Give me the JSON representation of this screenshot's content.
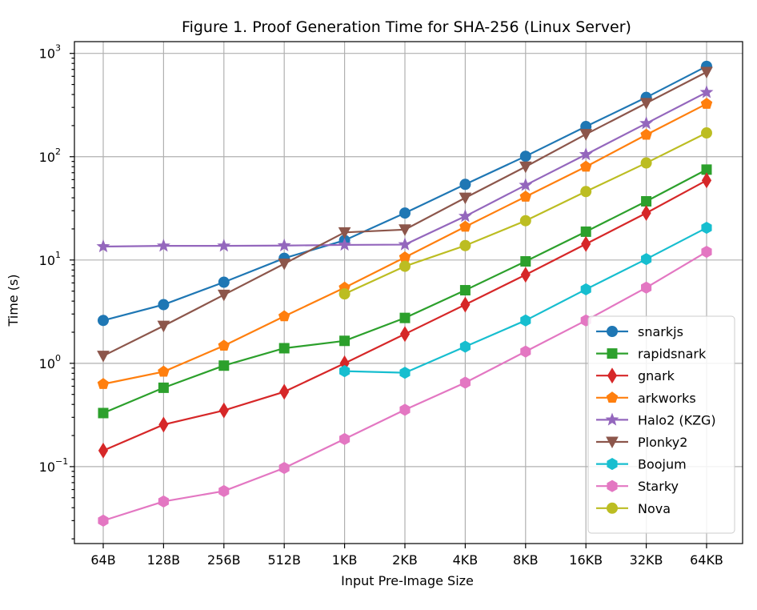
{
  "chart_data": {
    "type": "line",
    "title": "Figure 1. Proof Generation Time for SHA-256 (Linux Server)",
    "xlabel": "Input Pre-Image Size",
    "ylabel": "Time (s)",
    "y_scale": "log",
    "ylim": [
      0.018,
      1300
    ],
    "y_ticks": [
      {
        "value": 0.1,
        "base": "10",
        "exp": "−1"
      },
      {
        "value": 1,
        "base": "10",
        "exp": "0"
      },
      {
        "value": 10,
        "base": "10",
        "exp": "1"
      },
      {
        "value": 100,
        "base": "10",
        "exp": "2"
      },
      {
        "value": 1000,
        "base": "10",
        "exp": "3"
      }
    ],
    "grid": true,
    "legend_position": "lower right",
    "categories": [
      "64B",
      "128B",
      "256B",
      "512B",
      "1KB",
      "2KB",
      "4KB",
      "8KB",
      "16KB",
      "32KB",
      "64KB"
    ],
    "series": [
      {
        "name": "snarkjs",
        "color": "#1f77b4",
        "marker": "circle",
        "values": [
          2.6,
          3.7,
          6.1,
          10.4,
          15.5,
          28.5,
          54,
          101,
          196,
          375,
          750
        ]
      },
      {
        "name": "rapidsnark",
        "color": "#2ca02c",
        "marker": "square",
        "values": [
          0.33,
          0.58,
          0.95,
          1.4,
          1.65,
          2.75,
          5.1,
          9.7,
          18.8,
          37,
          75
        ]
      },
      {
        "name": "gnark",
        "color": "#d62728",
        "marker": "thin-diamond",
        "values": [
          0.143,
          0.255,
          0.35,
          0.53,
          1.0,
          1.92,
          3.7,
          7.2,
          14.3,
          28.5,
          59
        ]
      },
      {
        "name": "arkworks",
        "color": "#ff7f0e",
        "marker": "pentagon",
        "values": [
          0.63,
          0.83,
          1.48,
          2.85,
          5.4,
          10.6,
          21,
          41,
          80,
          163,
          325
        ]
      },
      {
        "name": "Halo2 (KZG)",
        "color": "#9467bd",
        "marker": "star",
        "values": [
          13.5,
          13.7,
          13.7,
          13.8,
          14.0,
          14.1,
          26.5,
          53,
          105,
          210,
          420
        ]
      },
      {
        "name": "Plonky2",
        "color": "#8c564b",
        "marker": "triangle-down",
        "values": [
          1.18,
          2.3,
          4.6,
          9.2,
          18.5,
          19.7,
          40,
          80,
          165,
          330,
          660
        ]
      },
      {
        "name": "Boojum",
        "color": "#17becf",
        "marker": "hexagon",
        "values": [
          null,
          null,
          null,
          null,
          0.84,
          0.81,
          1.45,
          2.6,
          5.2,
          10.2,
          20.5
        ]
      },
      {
        "name": "Starky",
        "color": "#e377c2",
        "marker": "hexagon",
        "values": [
          0.03,
          0.046,
          0.058,
          0.097,
          0.185,
          0.355,
          0.65,
          1.3,
          2.6,
          5.4,
          12
        ]
      },
      {
        "name": "Nova",
        "color": "#bcbd22",
        "marker": "circle",
        "values": [
          null,
          null,
          null,
          null,
          4.7,
          8.7,
          13.8,
          24,
          46,
          87,
          170
        ]
      }
    ]
  }
}
